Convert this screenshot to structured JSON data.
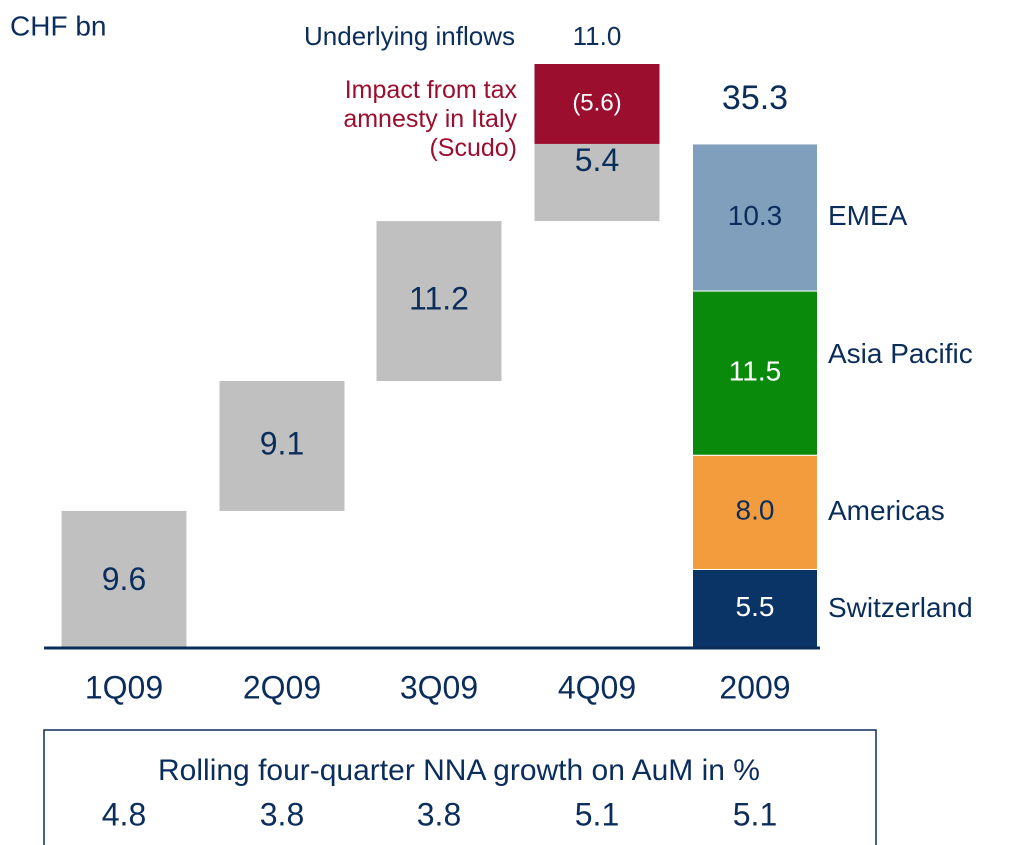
{
  "unit_label": "CHF bn",
  "chart_data": {
    "type": "waterfall",
    "categories": [
      "1Q09",
      "2Q09",
      "3Q09",
      "4Q09"
    ],
    "values": [
      9.6,
      9.1,
      11.2,
      5.4
    ],
    "color": "#c0c0c0",
    "underlying": {
      "name": "Underlying inflows",
      "value": 11,
      "value_label": "11.0"
    },
    "adjustment": {
      "name": "Impact from tax amnesty in Italy (Scudo)",
      "value": -5.6,
      "value_label": "(5.6)",
      "color": "#9b0e2e"
    },
    "total": {
      "category": "2009",
      "value": 35.3,
      "segments": [
        {
          "name": "Switzerland",
          "color": "#0b3466",
          "value": 5.5
        },
        {
          "name": "Americas",
          "color": "#f39c3e",
          "value": 8,
          "value_label": "8.0"
        },
        {
          "name": "Asia Pacific",
          "color": "#0a8a0a",
          "value": 11.5
        },
        {
          "name": "EMEA",
          "color": "#7f9fbc",
          "value": 10.3
        }
      ]
    }
  },
  "growth": {
    "title": "Rolling four-quarter NNA growth on AuM in %",
    "values": [
      4.8,
      3.8,
      3.8,
      5.1,
      5.1
    ]
  }
}
